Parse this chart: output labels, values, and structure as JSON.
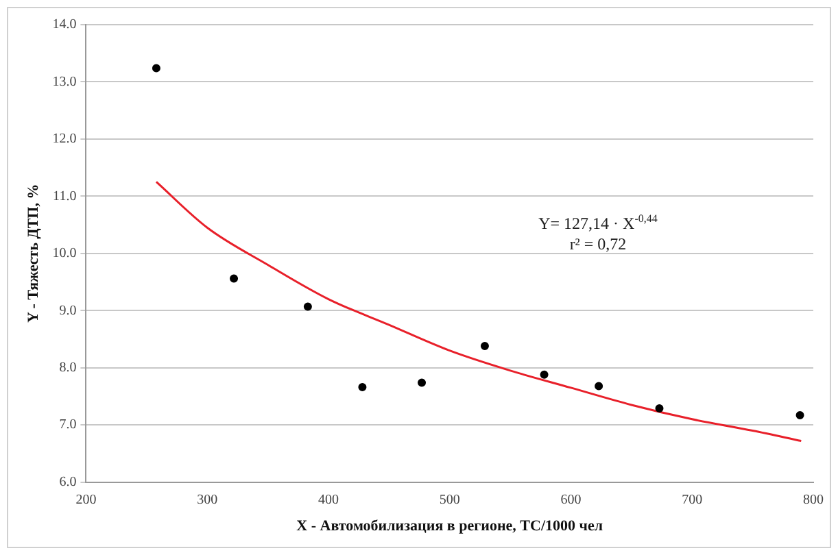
{
  "chart_data": {
    "type": "scatter",
    "xlabel": "X - Автомобилизация в регионе, ТС/1000 чел",
    "ylabel": "Y - Тяжесть ДТП, %",
    "x": [
      258,
      322,
      383,
      428,
      477,
      529,
      578,
      623,
      673,
      789
    ],
    "series": [
      {
        "color": "#000000",
        "marker": "circle",
        "values": [
          13.24,
          9.56,
          9.07,
          7.66,
          7.74,
          8.38,
          7.88,
          7.68,
          7.29,
          7.17
        ]
      },
      {
        "type": "line",
        "color": "#e8202a",
        "marker": "none",
        "x": [
          258,
          300,
          350,
          400,
          450,
          500,
          550,
          600,
          650,
          700,
          750,
          790
        ],
        "values": [
          11.25,
          10.45,
          9.8,
          9.2,
          8.75,
          8.3,
          7.95,
          7.65,
          7.35,
          7.1,
          6.9,
          6.72
        ]
      }
    ],
    "xlim": [
      200,
      800
    ],
    "xticks": [
      200,
      300,
      400,
      500,
      600,
      700,
      800
    ],
    "ylim": [
      6,
      14
    ],
    "yticks": [
      {
        "value": 6,
        "label": "6.0"
      },
      {
        "value": 7,
        "label": "7.0"
      },
      {
        "value": 8,
        "label": "8.0"
      },
      {
        "value": 9,
        "label": "9.0"
      },
      {
        "value": 10,
        "label": "10.0"
      },
      {
        "value": 11,
        "label": "11.0"
      },
      {
        "value": 12,
        "label": "12.0"
      },
      {
        "value": 13,
        "label": "13.0"
      },
      {
        "value": 14,
        "label": "14.0"
      }
    ],
    "grid": "y",
    "legend": false,
    "annotations": [
      "Y= 127,14 · X$^{-0,44}$",
      "r² = 0,72"
    ]
  }
}
